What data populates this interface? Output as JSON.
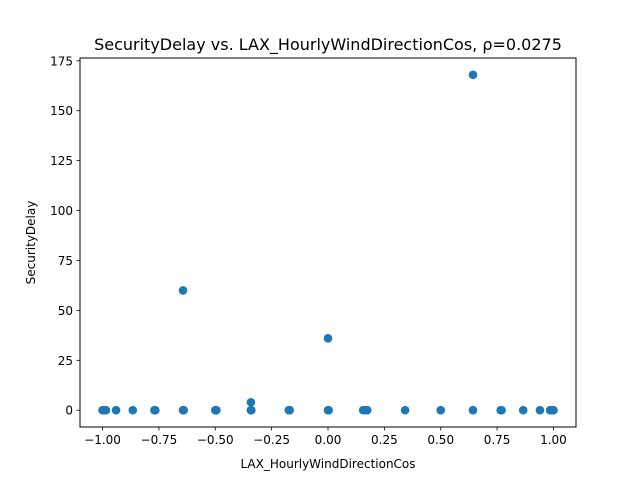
{
  "chart_data": {
    "type": "scatter",
    "title": "SecurityDelay vs. LAX_HourlyWindDirectionCos, ρ=0.0275",
    "xlabel": "LAX_HourlyWindDirectionCos",
    "ylabel": "SecurityDelay",
    "xlim": [
      -1.1,
      1.1
    ],
    "ylim": [
      -8.4,
      176.4
    ],
    "x_ticks": [
      -1.0,
      -0.75,
      -0.5,
      -0.25,
      0.0,
      0.25,
      0.5,
      0.75,
      1.0
    ],
    "x_tick_labels": [
      "−1.00",
      "−0.75",
      "−0.50",
      "−0.25",
      "0.00",
      "0.25",
      "0.50",
      "0.75",
      "1.00"
    ],
    "y_ticks": [
      0,
      25,
      50,
      75,
      100,
      125,
      150,
      175
    ],
    "y_tick_labels": [
      "0",
      "25",
      "50",
      "75",
      "100",
      "125",
      "150",
      "175"
    ],
    "grid": false,
    "legend": "none",
    "marker_color": "#1f77b4",
    "points": [
      {
        "x": -1.0,
        "y": 0
      },
      {
        "x": -0.996,
        "y": 0
      },
      {
        "x": -0.985,
        "y": 0
      },
      {
        "x": -0.94,
        "y": 0
      },
      {
        "x": -0.866,
        "y": 0
      },
      {
        "x": -0.77,
        "y": 0
      },
      {
        "x": -0.766,
        "y": 0
      },
      {
        "x": -0.643,
        "y": 0
      },
      {
        "x": -0.64,
        "y": 0
      },
      {
        "x": -0.643,
        "y": 60
      },
      {
        "x": -0.5,
        "y": 0
      },
      {
        "x": -0.495,
        "y": 0
      },
      {
        "x": -0.342,
        "y": 0
      },
      {
        "x": -0.34,
        "y": 0
      },
      {
        "x": -0.342,
        "y": 4
      },
      {
        "x": -0.174,
        "y": 0
      },
      {
        "x": -0.17,
        "y": 0
      },
      {
        "x": 0.0,
        "y": 0
      },
      {
        "x": 0.003,
        "y": 0
      },
      {
        "x": 0.0,
        "y": 36
      },
      {
        "x": 0.156,
        "y": 0
      },
      {
        "x": 0.17,
        "y": 0
      },
      {
        "x": 0.174,
        "y": 0
      },
      {
        "x": 0.342,
        "y": 0
      },
      {
        "x": 0.5,
        "y": 0
      },
      {
        "x": 0.643,
        "y": 0
      },
      {
        "x": 0.643,
        "y": 168
      },
      {
        "x": 0.766,
        "y": 0
      },
      {
        "x": 0.77,
        "y": 0
      },
      {
        "x": 0.866,
        "y": 0
      },
      {
        "x": 0.94,
        "y": 0
      },
      {
        "x": 0.985,
        "y": 0
      },
      {
        "x": 0.996,
        "y": 0
      },
      {
        "x": 1.0,
        "y": 0
      }
    ]
  }
}
